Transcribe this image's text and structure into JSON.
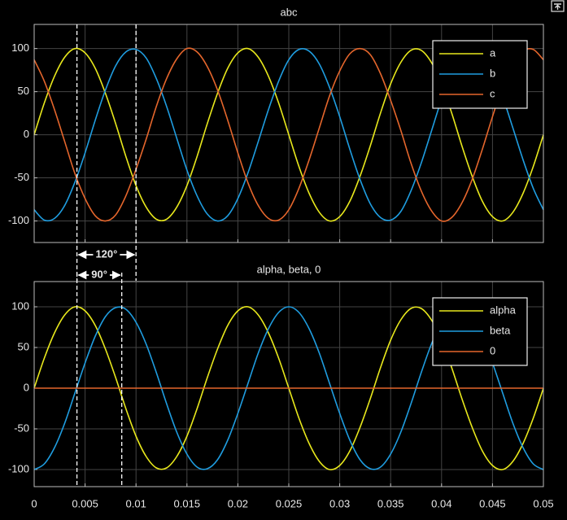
{
  "chart_data": [
    {
      "type": "line",
      "title": "abc",
      "x": [
        0,
        0.001,
        0.002,
        0.003,
        0.004,
        0.005,
        0.006,
        0.007,
        0.008,
        0.009,
        0.01,
        0.011,
        0.012,
        0.013,
        0.014,
        0.015,
        0.016,
        0.017,
        0.018,
        0.019,
        0.02,
        0.021,
        0.022,
        0.023,
        0.024,
        0.025,
        0.026,
        0.027,
        0.028,
        0.029,
        0.03,
        0.031,
        0.032,
        0.033,
        0.034,
        0.035,
        0.036,
        0.037,
        0.038,
        0.039,
        0.04,
        0.041,
        0.042,
        0.043,
        0.044,
        0.045,
        0.046,
        0.047,
        0.048,
        0.049,
        0.05
      ],
      "series": [
        {
          "name": "a",
          "color": "#e8e81c",
          "values": [
            0,
            37,
            68,
            90,
            100,
            95,
            77,
            48,
            13,
            -25,
            -59,
            -84,
            -98,
            -98,
            -84,
            -59,
            -25,
            13,
            48,
            77,
            95,
            100,
            90,
            68,
            37,
            0,
            -37,
            -68,
            -90,
            -100,
            -95,
            -77,
            -48,
            -13,
            25,
            59,
            84,
            98,
            98,
            84,
            59,
            25,
            -13,
            -48,
            -77,
            -95,
            -100,
            -90,
            -68,
            -37,
            0
          ]
        },
        {
          "name": "b",
          "color": "#1f9de0",
          "values": [
            -87,
            -99,
            -97,
            -82,
            -55,
            -21,
            17,
            52,
            80,
            96,
            99,
            89,
            65,
            33,
            -4,
            -41,
            -71,
            -92,
            -100,
            -94,
            -74,
            -44,
            -8,
            29,
            62,
            87,
            99,
            97,
            82,
            55,
            21,
            -17,
            -52,
            -80,
            -96,
            -99,
            -89,
            -65,
            -33,
            4,
            41,
            71,
            92,
            100,
            94,
            74,
            44,
            8,
            -29,
            -62,
            -87
          ]
        },
        {
          "name": "c",
          "color": "#e5662c",
          "values": [
            87,
            62,
            29,
            -8,
            -45,
            -74,
            -94,
            -100,
            -93,
            -71,
            -40,
            -5,
            33,
            65,
            88,
            100,
            96,
            79,
            52,
            17,
            -21,
            -56,
            -82,
            -97,
            -99,
            -87,
            -62,
            -29,
            8,
            45,
            74,
            94,
            100,
            93,
            71,
            40,
            5,
            -33,
            -65,
            -88,
            -100,
            -96,
            -79,
            -52,
            -17,
            21,
            56,
            82,
            97,
            99,
            87
          ]
        }
      ],
      "xlim": [
        0,
        0.05
      ],
      "ylim": [
        -125,
        128
      ],
      "xticks": [
        0,
        0.005,
        0.01,
        0.015,
        0.02,
        0.025,
        0.03,
        0.035,
        0.04,
        0.045,
        0.05
      ],
      "yticks": [
        -100,
        -50,
        0,
        50,
        100
      ],
      "grid": true,
      "legend": "upper right",
      "annotations": [
        {
          "text": "120°",
          "x": [
            0.0042,
            0.01
          ]
        }
      ]
    },
    {
      "type": "line",
      "title": "alpha, beta, 0",
      "x": [
        0,
        0.001,
        0.002,
        0.003,
        0.004,
        0.005,
        0.006,
        0.007,
        0.008,
        0.009,
        0.01,
        0.011,
        0.012,
        0.013,
        0.014,
        0.015,
        0.016,
        0.017,
        0.018,
        0.019,
        0.02,
        0.021,
        0.022,
        0.023,
        0.024,
        0.025,
        0.026,
        0.027,
        0.028,
        0.029,
        0.03,
        0.031,
        0.032,
        0.033,
        0.034,
        0.035,
        0.036,
        0.037,
        0.038,
        0.039,
        0.04,
        0.041,
        0.042,
        0.043,
        0.044,
        0.045,
        0.046,
        0.047,
        0.048,
        0.049,
        0.05
      ],
      "series": [
        {
          "name": "alpha",
          "color": "#e8e81c",
          "values": [
            0,
            37,
            68,
            90,
            100,
            95,
            77,
            48,
            13,
            -25,
            -59,
            -84,
            -98,
            -98,
            -84,
            -59,
            -25,
            13,
            48,
            77,
            95,
            100,
            90,
            68,
            37,
            0,
            -37,
            -68,
            -90,
            -100,
            -95,
            -77,
            -48,
            -13,
            25,
            59,
            84,
            98,
            98,
            84,
            59,
            25,
            -13,
            -48,
            -77,
            -95,
            -100,
            -90,
            -68,
            -37,
            0
          ]
        },
        {
          "name": "beta",
          "color": "#1f9de0",
          "values": [
            -100,
            -93,
            -73,
            -43,
            -6,
            31,
            64,
            88,
            99,
            97,
            81,
            54,
            19,
            -19,
            -54,
            -81,
            -97,
            -99,
            -88,
            -64,
            -31,
            6,
            43,
            73,
            93,
            100,
            93,
            73,
            43,
            6,
            -31,
            -64,
            -88,
            -99,
            -97,
            -81,
            -54,
            -19,
            19,
            54,
            81,
            97,
            99,
            88,
            64,
            31,
            -6,
            -43,
            -73,
            -93,
            -100
          ]
        },
        {
          "name": "0",
          "color": "#e5662c",
          "values": [
            0,
            0,
            0,
            0,
            0,
            0,
            0,
            0,
            0,
            0,
            0,
            0,
            0,
            0,
            0,
            0,
            0,
            0,
            0,
            0,
            0,
            0,
            0,
            0,
            0,
            0,
            0,
            0,
            0,
            0,
            0,
            0,
            0,
            0,
            0,
            0,
            0,
            0,
            0,
            0,
            0,
            0,
            0,
            0,
            0,
            0,
            0,
            0,
            0,
            0,
            0
          ]
        }
      ],
      "xlim": [
        0,
        0.05
      ],
      "ylim": [
        -121,
        131
      ],
      "xticks": [
        0,
        0.005,
        0.01,
        0.015,
        0.02,
        0.025,
        0.03,
        0.035,
        0.04,
        0.045,
        0.05
      ],
      "yticks": [
        -100,
        -50,
        0,
        50,
        100
      ],
      "grid": true,
      "legend": "upper right",
      "annotations": [
        {
          "text": "90°",
          "x": [
            0.0042,
            0.0086
          ]
        }
      ]
    }
  ]
}
